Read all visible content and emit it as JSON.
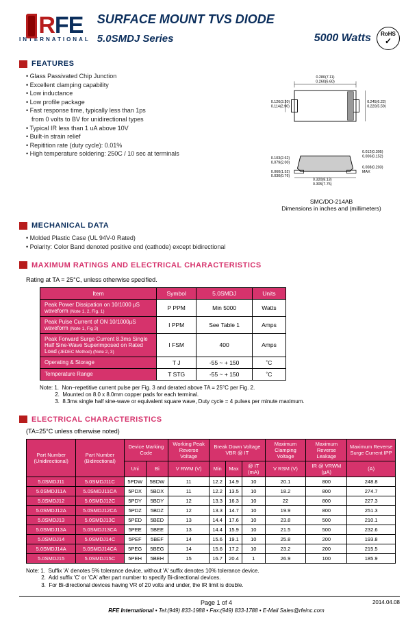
{
  "header": {
    "logo_text_r": "R",
    "logo_text_fe": "FE",
    "logo_sub": "INTERNATIONAL",
    "title_main": "SURFACE MOUNT TVS DIODE",
    "title_sub": "5.0SMDJ Series",
    "watts": "5000 Watts",
    "rohs_main": "RoHS",
    "rohs_check": "✓"
  },
  "sections": {
    "features": "FEATURES",
    "mechanical": "MECHANICAL DATA",
    "max_ratings": "MAXIMUM RATINGS AND ELECTRICAL CHARACTERISTICS",
    "elec_char": "ELECTRICAL CHARACTERISTICS"
  },
  "features": [
    "Glass Passivated Chip Junction",
    "Excellent clamping capability",
    "Low inductance",
    "Low profile package",
    "Fast response time, typically less than 1ps",
    "from 0 volts to BV for unidirectional types",
    "Typical IR less than 1 uA above 10V",
    "Built-in strain relief",
    "Repitition rate (duty cycle): 0.01%",
    "High temperature soldering: 250C / 10 sec at terminals"
  ],
  "mechanical": [
    "Molded Plastic Case (UL 94V-0 Rated)",
    "Polarity: Color Band denoted positive end (cathode) except bidirectional"
  ],
  "dim_labels": {
    "top_a": "0.280(7.11)",
    "top_b": "0.260(6.60)",
    "left_a": "0.126(3.20)",
    "left_b": "0.114(2.90)",
    "right_a": "0.245(6.22)",
    "right_b": "0.220(5.59)",
    "h1_a": "0.103(2.62)",
    "h1_b": "0.079(2.00)",
    "h2_a": "0.060(1.52)",
    "h2_b": "0.030(0.76)",
    "t1_a": "0.012(0.305)",
    "t1_b": "0.006(0.152)",
    "t2_a": "0.008(0.203)",
    "t2_b": "MAX",
    "bot_a": "0.320(8.13)",
    "bot_b": "0.305(7.75)",
    "caption1": "SMC/DO-214AB",
    "caption2": "Dimensions in inches and (millimeters)"
  },
  "rating_label": "Rating at TA = 25°C, unless otherwise specified.",
  "ratings_table": {
    "headers": [
      "Item",
      "Symbol",
      "5.0SMDJ",
      "Units"
    ],
    "rows": [
      {
        "item": "Peak Power Dissipation on 10/1000 µS waveform",
        "sub": "(Note 1, 2, Fig. 1)",
        "symbol": "P PPM",
        "val": "Min 5000",
        "unit": "Watts"
      },
      {
        "item": "Peak Pulse Current of ON 10/1000µS waveform",
        "sub": "(Note 1, Fig 3)",
        "symbol": "I PPM",
        "val": "See Table 1",
        "unit": "Amps"
      },
      {
        "item": "Peak Forward Surge Current  8.3ms Single Half Sine-Wave Superimposed on Rated Load",
        "sub": "(JEDEC Method) (Note 2, 3)",
        "symbol": "I FSM",
        "val": "400",
        "unit": "Amps"
      },
      {
        "item": "Operating & Storage",
        "sub": "",
        "symbol": "T J",
        "val": "-55 ~ + 150",
        "unit": "˚C"
      },
      {
        "item": "Temperature Range",
        "sub": "",
        "symbol": "T STG",
        "val": "-55 ~ + 150",
        "unit": "˚C"
      }
    ]
  },
  "notes1": [
    "Note: 1.  Non−repetitive current pulse per Fig. 3 and derated above TA = 25°C per Fig. 2.",
    "          2.  Mounted on 8.0 x 8.0mm copper pads for each terminal.",
    "          3.  8.3ms single half sine-wave or equivalent square wave, Duty cycle = 4 pulses per minute maximum."
  ],
  "elec_sub": "(TA=25°C  unless  otherwise  noted)",
  "elec_headers": {
    "pn_uni": "Part Number (Unidirectional)",
    "pn_bi": "Part Number (Bidirectional)",
    "dev_code": "Device Marking Code",
    "uni": "Uni",
    "bi": "Bi",
    "wprv": "Working Peak Reverse Voltage",
    "wprv2": "V RWM (V)",
    "bdv": "Break Down Voltage VBR @ IT",
    "min": "Min",
    "max": "Max",
    "it": "@ IT (mA)",
    "mcv": "Maximum Clamping Voltage",
    "mcv2": "V RSM (V)",
    "mrl": "Maximum Reverse Leakage",
    "mrl2": "IR @ VRWM (µA)",
    "mrs": "Maximum Reverse Surge Current IPP",
    "mrs2": "(A)"
  },
  "elec_rows": [
    [
      "5.0SMDJ11",
      "5.0SMDJ11C",
      "5PDW",
      "5BDW",
      "11",
      "12.2",
      "14.9",
      "10",
      "20.1",
      "800",
      "248.8"
    ],
    [
      "5.0SMDJ11A",
      "5.0SMDJ11CA",
      "5PDX",
      "5BDX",
      "11",
      "12.2",
      "13.5",
      "10",
      "18.2",
      "800",
      "274.7"
    ],
    [
      "5.0SMDJ12",
      "5.0SMDJ12C",
      "5PDY",
      "5BDY",
      "12",
      "13.3",
      "16.3",
      "10",
      "22",
      "800",
      "227.3"
    ],
    [
      "5.0SMDJ12A",
      "5.0SMDJ12CA",
      "5PDZ",
      "5BDZ",
      "12",
      "13.3",
      "14.7",
      "10",
      "19.9",
      "800",
      "251.3"
    ],
    [
      "5.0SMDJ13",
      "5.0SMDJ13C",
      "5PED",
      "5BED",
      "13",
      "14.4",
      "17.6",
      "10",
      "23.8",
      "500",
      "210.1"
    ],
    [
      "5.0SMDJ13A",
      "5.0SMDJ13CA",
      "5PEE",
      "5BEE",
      "13",
      "14.4",
      "15.9",
      "10",
      "21.5",
      "500",
      "232.6"
    ],
    [
      "5.0SMDJ14",
      "5.0SMDJ14C",
      "5PEF",
      "5BEF",
      "14",
      "15.6",
      "19.1",
      "10",
      "25.8",
      "200",
      "193.8"
    ],
    [
      "5.0SMDJ14A",
      "5.0SMDJ14CA",
      "5PEG",
      "5BEG",
      "14",
      "15.6",
      "17.2",
      "10",
      "23.2",
      "200",
      "215.5"
    ],
    [
      "5.0SMDJ15",
      "5.0SMDJ15C",
      "5PEH",
      "5BEH",
      "15",
      "16.7",
      "20.4",
      "1",
      "26.9",
      "100",
      "185.9"
    ]
  ],
  "notes2": [
    "Note: 1.  Suffix 'A' denotes 5% tolerance device, without 'A' suffix denotes 10% tolerance device.",
    "          2.  Add suffix 'C' or 'CA' after part number to specify Bi-directional devices.",
    "          3.  For Bi-directional devices having VR of 20 volts and under, the IR limit is double."
  ],
  "footer": {
    "page": "Page 1 of 4",
    "company": "RFE International",
    "tel": "• Tel:(949) 833-1988 • Fax:(949) 833-1788 • E-Mail Sales@rfeinc.com",
    "date": "2014.04.08"
  },
  "colors": {
    "brand_red": "#b71c1c",
    "brand_blue": "#0b2e5c",
    "table_header": "#d6336c"
  }
}
